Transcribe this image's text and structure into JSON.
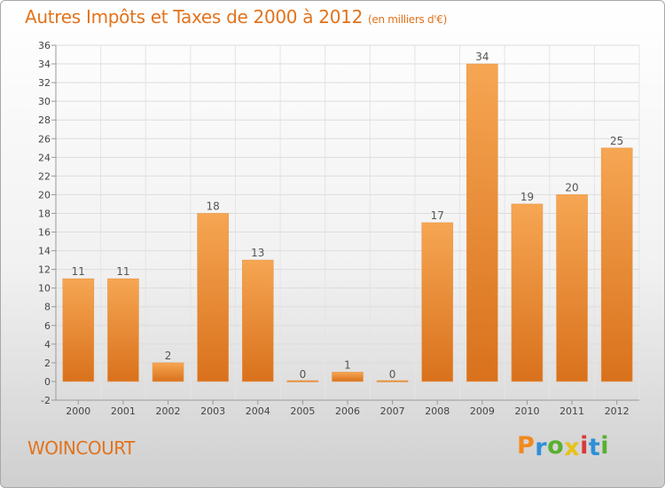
{
  "header": {
    "title": "Autres Impôts et Taxes de 2000 à 2012",
    "unit": "(en milliers d'€)"
  },
  "footer": {
    "commune": "WOINCOURT",
    "logo_letters": [
      "P",
      "r",
      "o",
      "x",
      "i",
      "t",
      "i"
    ]
  },
  "colors": {
    "accent": "#e2731c",
    "bar_top": "#f6a653",
    "bar_bottom": "#d9711c",
    "logo": [
      "#f08a1c",
      "#2f8fd8",
      "#58b030",
      "#e8c217",
      "#d83a3a",
      "#2f8fd8",
      "#58b030"
    ]
  },
  "chart_data": {
    "type": "bar",
    "title": "Autres Impôts et Taxes de 2000 à 2012",
    "subtitle": "(en milliers d'€)",
    "xlabel": "",
    "ylabel": "",
    "categories": [
      "2000",
      "2001",
      "2002",
      "2003",
      "2004",
      "2005",
      "2006",
      "2007",
      "2008",
      "2009",
      "2010",
      "2011",
      "2012"
    ],
    "values": [
      11,
      11,
      2,
      18,
      13,
      0,
      1,
      0,
      17,
      34,
      19,
      20,
      25
    ],
    "ylim": [
      -2,
      36
    ],
    "yticks": [
      -2,
      0,
      2,
      4,
      6,
      8,
      10,
      12,
      14,
      16,
      18,
      20,
      22,
      24,
      26,
      28,
      30,
      32,
      34,
      36
    ],
    "grid": true,
    "legend": "none"
  }
}
